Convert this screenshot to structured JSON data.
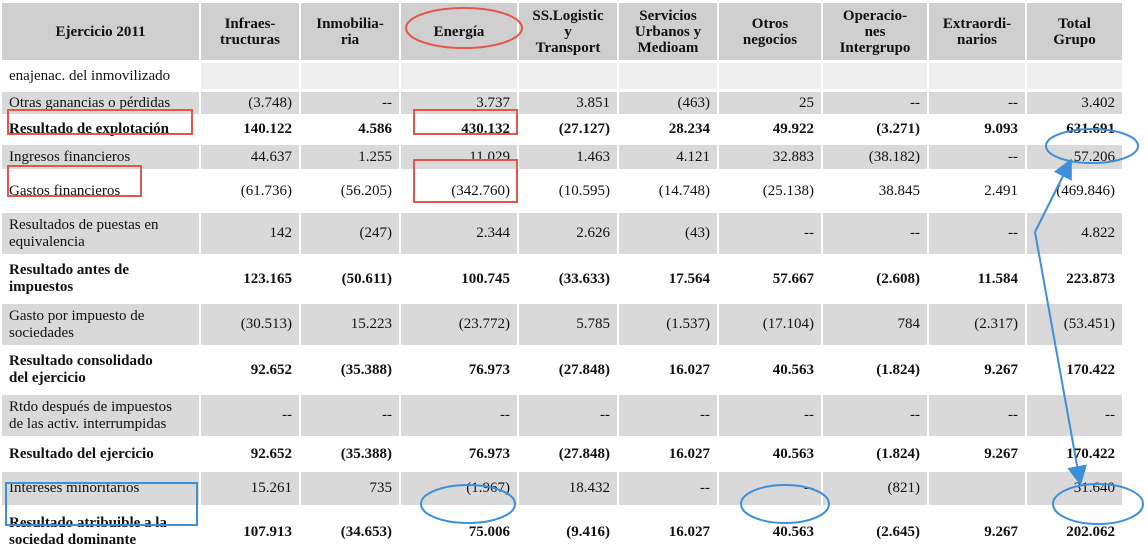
{
  "table": {
    "headers": [
      "Ejercicio 2011",
      "Infraes-\ntructuras",
      "Inmobilia-\nria",
      "Energía",
      "SS.Logistic\ny\nTransport",
      "Servicios\nUrbanos y\nMedioam",
      "Otros\nnegocios",
      "Operacio-\nnes\nIntergrupo",
      "Extraordi-\nnarios",
      "Total\nGrupo"
    ],
    "rows": [
      {
        "label": "enajenac. del inmovilizado",
        "values": [
          "",
          "",
          "",
          "",
          "",
          "",
          "",
          "",
          ""
        ],
        "style": "blank"
      },
      {
        "label": "Otras ganancias o pérdidas",
        "values": [
          "(3.748)",
          "--",
          "3.737",
          "3.851",
          "(463)",
          "25",
          "--",
          "--",
          "3.402"
        ],
        "style": "shaded"
      },
      {
        "label": "Resultado de explotación",
        "values": [
          "140.122",
          "4.586",
          "430.132",
          "(27.127)",
          "28.234",
          "49.922",
          "(3.271)",
          "9.093",
          "631.691"
        ],
        "style": "plain",
        "bold": true
      },
      {
        "label": "Ingresos financieros",
        "values": [
          "44.637",
          "1.255",
          "11.029",
          "1.463",
          "4.121",
          "32.883",
          "(38.182)",
          "--",
          "57.206"
        ],
        "style": "shaded"
      },
      {
        "label": "Gastos financieros",
        "values": [
          "(61.736)",
          "(56.205)",
          "(342.760)",
          "(10.595)",
          "(14.748)",
          "(25.138)",
          "38.845",
          "2.491",
          "(469.846)"
        ],
        "style": "plain"
      },
      {
        "label": "Resultados de puestas en\nequivalencia",
        "values": [
          "142",
          "(247)",
          "2.344",
          "2.626",
          "(43)",
          "--",
          "--",
          "--",
          "4.822"
        ],
        "style": "shaded"
      },
      {
        "label": "Resultado antes de\nimpuestos",
        "values": [
          "123.165",
          "(50.611)",
          "100.745",
          "(33.633)",
          "17.564",
          "57.667",
          "(2.608)",
          "11.584",
          "223.873"
        ],
        "style": "plain",
        "bold": true
      },
      {
        "label": "Gasto por impuesto de\nsociedades",
        "values": [
          "(30.513)",
          "15.223",
          "(23.772)",
          "5.785",
          "(1.537)",
          "(17.104)",
          "784",
          "(2.317)",
          "(53.451)"
        ],
        "style": "shaded"
      },
      {
        "label": "Resultado consolidado\ndel ejercicio",
        "values": [
          "92.652",
          "(35.388)",
          "76.973",
          "(27.848)",
          "16.027",
          "40.563",
          "(1.824)",
          "9.267",
          "170.422"
        ],
        "style": "plain",
        "bold": true
      },
      {
        "label": "Rtdo después de impuestos\nde las activ. interrumpidas",
        "values": [
          "--",
          "--",
          "--",
          "--",
          "--",
          "--",
          "--",
          "--",
          "--"
        ],
        "style": "shaded"
      },
      {
        "label": "Resultado del ejercicio",
        "values": [
          "92.652",
          "(35.388)",
          "76.973",
          "(27.848)",
          "16.027",
          "40.563",
          "(1.824)",
          "9.267",
          "170.422"
        ],
        "style": "plain",
        "bold": true
      },
      {
        "label": "Intereses minoritarios",
        "values": [
          "15.261",
          "735",
          "(1.967)",
          "18.432",
          "--",
          "--",
          "(821)",
          "",
          "31.640"
        ],
        "style": "shaded"
      },
      {
        "label": "Resultado atribuible a la\nsociedad dominante",
        "values": [
          "107.913",
          "(34.653)",
          "75.006",
          "(9.416)",
          "16.027",
          "40.563",
          "(2.645)",
          "9.267",
          "202.062"
        ],
        "style": "plain",
        "bold": true
      }
    ]
  },
  "annotations": {
    "red_color": "#e2574c",
    "blue_color": "#3d8fd9"
  }
}
